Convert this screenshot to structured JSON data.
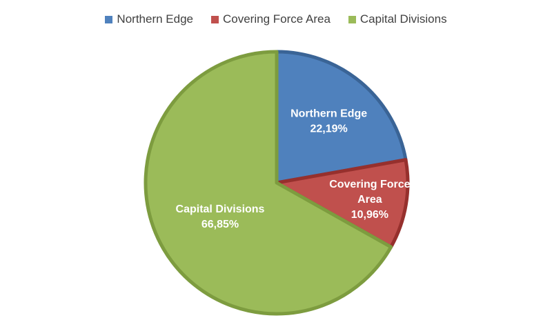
{
  "chart_data": {
    "type": "pie",
    "title": "",
    "legend_position": "top",
    "series": [
      {
        "slices": [
          {
            "label": "Northern Edge",
            "value": 22.19,
            "value_label": "22,19%",
            "label_lines": [
              "Northern Edge"
            ],
            "color": "#4F81BD",
            "border": "#3A6496"
          },
          {
            "label": "Covering Force Area",
            "value": 10.96,
            "value_label": "10,96%",
            "label_lines": [
              "Covering Force",
              "Area"
            ],
            "color": "#C0504D",
            "border": "#96302D"
          },
          {
            "label": "Capital Divisions",
            "value": 66.85,
            "value_label": "66,85%",
            "label_lines": [
              "Capital Divisions"
            ],
            "color": "#9BBB59",
            "border": "#7D9C3F"
          }
        ]
      }
    ]
  }
}
